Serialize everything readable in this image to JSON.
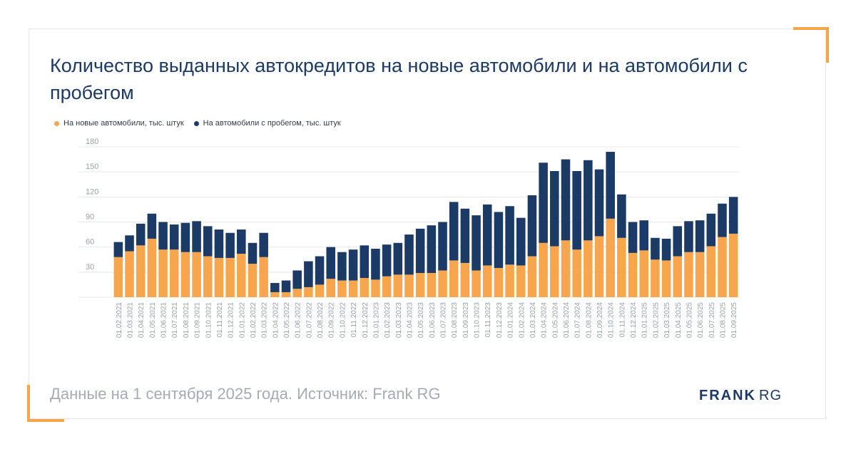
{
  "title": "Количество выданных автокредитов на новые автомобили и на автомобили с пробегом",
  "footer": "Данные на 1 сентября 2025 года. Источник: Frank RG",
  "logo": {
    "bold": "FRANK",
    "light": "RG"
  },
  "colors": {
    "new": "#f8a64d",
    "used": "#1b3a66",
    "accent": "#f5a54a",
    "grid": "#e6e8eb"
  },
  "chart_data": {
    "type": "bar",
    "stacked": true,
    "title": "Количество выданных автокредитов на новые автомобили и на автомобили с пробегом",
    "ylim": [
      0,
      180
    ],
    "yticks": [
      "30",
      "60",
      "90",
      "120",
      "150",
      "180"
    ],
    "grid": true,
    "legend_position": "top-left",
    "categories": [
      "01.02.2021",
      "01.03.2021",
      "01.04.2021",
      "01.05.2021",
      "01.06.2021",
      "01.07.2021",
      "01.08.2021",
      "01.09.2021",
      "01.10.2021",
      "01.11.2021",
      "01.12.2021",
      "01.01.2022",
      "01.02.2022",
      "01.03.2022",
      "01.04.2022",
      "01.05.2022",
      "01.06.2022",
      "01.07.2022",
      "01.08.2022",
      "01.09.2022",
      "01.10.2022",
      "01.11.2022",
      "01.12.2022",
      "01.01.2023",
      "01.02.2023",
      "01.03.2023",
      "01.04.2023",
      "01.05.2023",
      "01.06.2023",
      "01.07.2023",
      "01.08.2023",
      "01.09.2023",
      "01.10.2023",
      "01.11.2023",
      "01.12.2023",
      "01.01.2024",
      "01.02.2024",
      "01.03.2024",
      "01.04.2024",
      "01.05.2024",
      "01.06.2024",
      "01.07.2024",
      "01.08.2024",
      "01.09.2024",
      "01.10.2024",
      "01.11.2024",
      "01.12.2024",
      "01.01.2025",
      "01.02.2025",
      "01.03.2025",
      "01.04.2025",
      "01.05.2025",
      "01.06.2025",
      "01.07.2025",
      "01.08.2025",
      "01.09.2025"
    ],
    "series": [
      {
        "name": "На новые автомобили, тыс. штук",
        "values": [
          48,
          55,
          62,
          70,
          57,
          57,
          54,
          54,
          49,
          47,
          47,
          52,
          40,
          48,
          6,
          6,
          10,
          12,
          15,
          22,
          20,
          20,
          23,
          21,
          25,
          27,
          27,
          29,
          29,
          32,
          44,
          41,
          32,
          38,
          35,
          39,
          38,
          49,
          65,
          61,
          68,
          57,
          68,
          73,
          94,
          71,
          53,
          56,
          45,
          44,
          49,
          54,
          54,
          61,
          72,
          76
        ]
      },
      {
        "name": "На автомобили с пробегом, тыс. штук",
        "values": [
          18,
          19,
          26,
          30,
          33,
          30,
          35,
          37,
          36,
          34,
          30,
          29,
          25,
          29,
          11,
          14,
          22,
          31,
          34,
          38,
          34,
          37,
          39,
          37,
          38,
          38,
          48,
          53,
          57,
          58,
          70,
          65,
          66,
          73,
          67,
          70,
          57,
          73,
          96,
          90,
          97,
          94,
          96,
          80,
          80,
          52,
          37,
          36,
          26,
          26,
          36,
          37,
          38,
          39,
          40,
          44
        ]
      }
    ]
  }
}
